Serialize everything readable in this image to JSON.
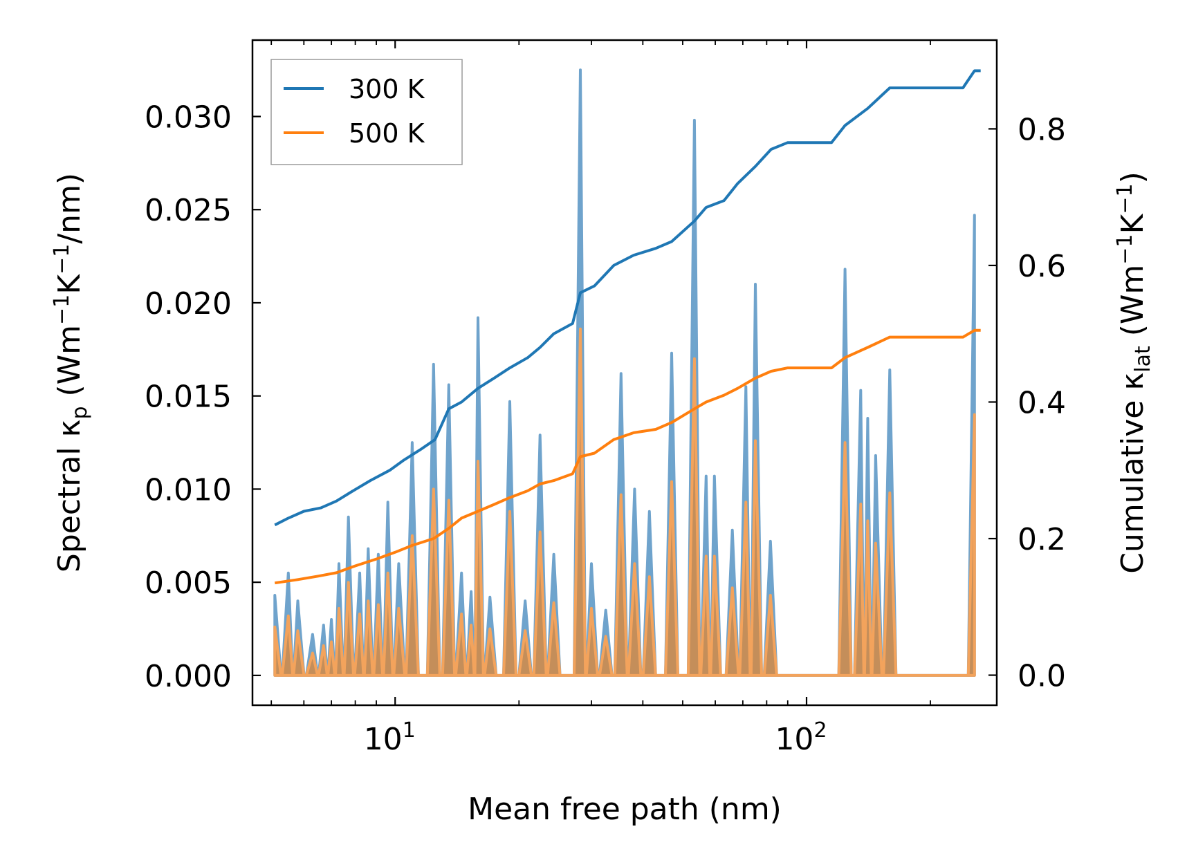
{
  "chart_data": {
    "type": "line",
    "xlabel": "Mean free path (nm)",
    "xscale": "log",
    "xlim": [
      4.5,
      290
    ],
    "x_ticks": [
      {
        "value": 10,
        "base": "10",
        "exp": "1"
      },
      {
        "value": 100,
        "base": "10",
        "exp": "2"
      }
    ],
    "ylabel_left": {
      "prefix": "Spectral κ",
      "sub": "p",
      "units": " (Wm",
      "sup1": "−1",
      "mid": "K",
      "sup2": "−1",
      "suffix": "/nm)"
    },
    "ylabel_right": {
      "prefix": "Cumulative κ",
      "sub": "lat",
      "units": " (Wm",
      "sup1": "−1",
      "mid": "K",
      "sup2": "−1",
      "suffix": ")"
    },
    "ylim_left": [
      -0.0016,
      0.0341
    ],
    "ylim_right": [
      -0.044,
      0.93
    ],
    "yticks_left": [
      "0.000",
      "0.005",
      "0.010",
      "0.015",
      "0.020",
      "0.025",
      "0.030"
    ],
    "yticks_right": [
      "0.0",
      "0.2",
      "0.4",
      "0.6",
      "0.8"
    ],
    "legend": {
      "position": "top-left",
      "entries": [
        {
          "label": "300 K",
          "color": "#1f77b4"
        },
        {
          "label": "500 K",
          "color": "#ff7f0e"
        }
      ]
    },
    "series": [
      {
        "name": "300 K",
        "color": "#1f77b4",
        "kind": "spectral",
        "axis": "left",
        "peaks": [
          [
            5.1,
            0.0043
          ],
          [
            5.5,
            0.0055
          ],
          [
            5.8,
            0.004
          ],
          [
            6.3,
            0.0022
          ],
          [
            6.7,
            0.0027
          ],
          [
            7.0,
            0.003
          ],
          [
            7.3,
            0.006
          ],
          [
            7.7,
            0.0085
          ],
          [
            8.2,
            0.0055
          ],
          [
            8.6,
            0.0068
          ],
          [
            9.1,
            0.0065
          ],
          [
            9.6,
            0.0093
          ],
          [
            10.2,
            0.006
          ],
          [
            11.0,
            0.0125
          ],
          [
            12.4,
            0.0167
          ],
          [
            13.5,
            0.0156
          ],
          [
            14.5,
            0.0055
          ],
          [
            15.3,
            0.0045
          ],
          [
            15.9,
            0.0192
          ],
          [
            17.0,
            0.0042
          ],
          [
            19.0,
            0.0147
          ],
          [
            20.7,
            0.004
          ],
          [
            22.5,
            0.0129
          ],
          [
            24.3,
            0.0065
          ],
          [
            28.2,
            0.0325
          ],
          [
            30.0,
            0.006
          ],
          [
            32.5,
            0.0035
          ],
          [
            35.4,
            0.0162
          ],
          [
            38.2,
            0.01
          ],
          [
            41.5,
            0.0088
          ],
          [
            47.0,
            0.0173
          ],
          [
            53.4,
            0.0298
          ],
          [
            57.0,
            0.0107
          ],
          [
            59.7,
            0.0107
          ],
          [
            66.0,
            0.0078
          ],
          [
            71.2,
            0.0155
          ],
          [
            75.1,
            0.021
          ],
          [
            81.7,
            0.0072
          ],
          [
            124.0,
            0.0218
          ],
          [
            135.4,
            0.0153
          ],
          [
            140.8,
            0.0138
          ],
          [
            147.2,
            0.0118
          ],
          [
            159.3,
            0.0164
          ],
          [
            256.0,
            0.0247
          ]
        ],
        "cumulative": [
          [
            5.1,
            0.22
          ],
          [
            5.5,
            0.23
          ],
          [
            6.0,
            0.24
          ],
          [
            6.6,
            0.245
          ],
          [
            7.2,
            0.255
          ],
          [
            7.9,
            0.27
          ],
          [
            8.7,
            0.285
          ],
          [
            9.7,
            0.3
          ],
          [
            10.5,
            0.315
          ],
          [
            11.5,
            0.33
          ],
          [
            12.5,
            0.345
          ],
          [
            13.5,
            0.39
          ],
          [
            14.5,
            0.4
          ],
          [
            15.9,
            0.42
          ],
          [
            17.4,
            0.435
          ],
          [
            19.0,
            0.45
          ],
          [
            21.0,
            0.465
          ],
          [
            22.5,
            0.48
          ],
          [
            24.3,
            0.5
          ],
          [
            27.0,
            0.515
          ],
          [
            28.2,
            0.56
          ],
          [
            30.5,
            0.57
          ],
          [
            34.0,
            0.6
          ],
          [
            38.0,
            0.615
          ],
          [
            43.0,
            0.625
          ],
          [
            47.0,
            0.635
          ],
          [
            53.4,
            0.665
          ],
          [
            57.0,
            0.685
          ],
          [
            63.0,
            0.695
          ],
          [
            68.0,
            0.72
          ],
          [
            75.1,
            0.745
          ],
          [
            82.0,
            0.77
          ],
          [
            90.0,
            0.78
          ],
          [
            115.0,
            0.78
          ],
          [
            124.0,
            0.805
          ],
          [
            140.8,
            0.83
          ],
          [
            159.3,
            0.86
          ],
          [
            180.0,
            0.86
          ],
          [
            240.0,
            0.86
          ],
          [
            256.0,
            0.885
          ],
          [
            265.0,
            0.885
          ]
        ]
      },
      {
        "name": "500 K",
        "color": "#ff7f0e",
        "kind": "spectral",
        "axis": "left",
        "peaks": [
          [
            5.1,
            0.0026
          ],
          [
            5.5,
            0.0032
          ],
          [
            5.8,
            0.0024
          ],
          [
            6.3,
            0.0012
          ],
          [
            6.7,
            0.0016
          ],
          [
            7.0,
            0.0018
          ],
          [
            7.3,
            0.0036
          ],
          [
            7.7,
            0.005
          ],
          [
            8.2,
            0.0033
          ],
          [
            8.6,
            0.004
          ],
          [
            9.1,
            0.0038
          ],
          [
            9.6,
            0.0055
          ],
          [
            10.2,
            0.0036
          ],
          [
            11.0,
            0.0075
          ],
          [
            12.4,
            0.01
          ],
          [
            13.5,
            0.0094
          ],
          [
            14.5,
            0.0033
          ],
          [
            15.3,
            0.0027
          ],
          [
            15.9,
            0.0115
          ],
          [
            17.0,
            0.0025
          ],
          [
            19.0,
            0.0088
          ],
          [
            20.7,
            0.0024
          ],
          [
            22.5,
            0.0077
          ],
          [
            24.3,
            0.0039
          ],
          [
            28.2,
            0.0186
          ],
          [
            30.0,
            0.0036
          ],
          [
            32.5,
            0.0021
          ],
          [
            35.4,
            0.0097
          ],
          [
            38.2,
            0.006
          ],
          [
            41.5,
            0.0053
          ],
          [
            47.0,
            0.0104
          ],
          [
            53.4,
            0.017
          ],
          [
            57.0,
            0.0064
          ],
          [
            59.7,
            0.0064
          ],
          [
            66.0,
            0.0047
          ],
          [
            71.2,
            0.0093
          ],
          [
            75.1,
            0.0126
          ],
          [
            81.7,
            0.0043
          ],
          [
            124.0,
            0.0125
          ],
          [
            135.4,
            0.0092
          ],
          [
            140.8,
            0.0083
          ],
          [
            147.2,
            0.0071
          ],
          [
            159.3,
            0.0098
          ],
          [
            256.0,
            0.014
          ]
        ],
        "cumulative": [
          [
            5.1,
            0.135
          ],
          [
            5.8,
            0.14
          ],
          [
            6.5,
            0.145
          ],
          [
            7.2,
            0.15
          ],
          [
            8.0,
            0.16
          ],
          [
            9.0,
            0.17
          ],
          [
            10.0,
            0.18
          ],
          [
            11.0,
            0.19
          ],
          [
            12.4,
            0.2
          ],
          [
            13.5,
            0.215
          ],
          [
            14.5,
            0.23
          ],
          [
            15.9,
            0.24
          ],
          [
            17.4,
            0.25
          ],
          [
            19.0,
            0.26
          ],
          [
            21.0,
            0.27
          ],
          [
            22.5,
            0.28
          ],
          [
            24.3,
            0.285
          ],
          [
            27.0,
            0.295
          ],
          [
            28.2,
            0.32
          ],
          [
            30.5,
            0.325
          ],
          [
            34.0,
            0.345
          ],
          [
            38.0,
            0.355
          ],
          [
            43.0,
            0.36
          ],
          [
            47.0,
            0.37
          ],
          [
            53.4,
            0.39
          ],
          [
            57.0,
            0.4
          ],
          [
            63.0,
            0.41
          ],
          [
            68.0,
            0.42
          ],
          [
            75.1,
            0.435
          ],
          [
            82.0,
            0.445
          ],
          [
            90.0,
            0.45
          ],
          [
            115.0,
            0.45
          ],
          [
            124.0,
            0.465
          ],
          [
            140.8,
            0.48
          ],
          [
            159.3,
            0.495
          ],
          [
            180.0,
            0.495
          ],
          [
            240.0,
            0.495
          ],
          [
            256.0,
            0.505
          ],
          [
            265.0,
            0.505
          ]
        ]
      }
    ]
  }
}
